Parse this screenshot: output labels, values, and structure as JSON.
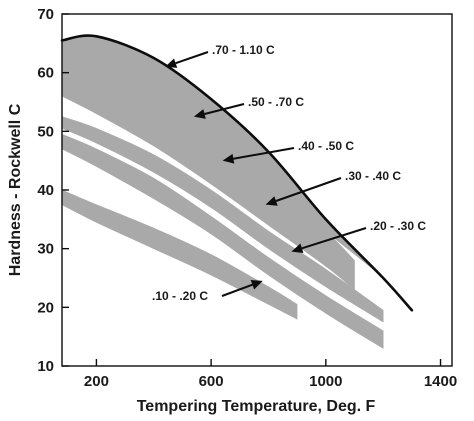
{
  "chart_data": {
    "type": "area",
    "title": "",
    "xlabel": "Tempering Temperature, Deg. F",
    "ylabel": "Hardness - Rockwell C",
    "xlim": [
      80,
      1440
    ],
    "ylim": [
      10,
      70
    ],
    "xticks": [
      200,
      600,
      1000,
      1400
    ],
    "yticks": [
      10,
      20,
      30,
      40,
      50,
      60,
      70
    ],
    "grid": false,
    "legend": "none",
    "colors": {
      "band": "#a9a9a9",
      "line": "#0d0d0d",
      "arrow": "#0d0d0d"
    },
    "envelope_line": {
      "name": ".70 - 1.10 C",
      "x": [
        80,
        200,
        400,
        600,
        800,
        1000,
        1200,
        1300
      ],
      "y": [
        65.5,
        66.2,
        62.5,
        55.5,
        46.5,
        35,
        25,
        19.5
      ]
    },
    "series": [
      {
        "name": ".70 - 1.10 C",
        "x": [
          80,
          200,
          400,
          600,
          800,
          1000,
          1200,
          1300
        ],
        "upper": [
          65.5,
          66.2,
          62.5,
          55.5,
          46.5,
          35,
          25,
          19.5
        ],
        "lower": [
          62.5,
          60,
          54.5,
          48,
          41.5,
          33,
          25,
          19.5
        ]
      },
      {
        "name": ".50 - .70 C",
        "x": [
          80,
          200,
          400,
          600,
          800,
          1000,
          1100
        ],
        "upper": [
          62.5,
          60,
          54.5,
          48,
          41.5,
          33,
          28
        ],
        "lower": [
          59,
          56,
          50.5,
          44.5,
          37.5,
          30,
          26
        ]
      },
      {
        "name": ".40 - .50 C",
        "x": [
          80,
          200,
          400,
          600,
          800,
          1000,
          1100
        ],
        "upper": [
          59,
          56,
          50.5,
          44.5,
          37.5,
          30,
          26
        ],
        "lower": [
          56,
          53,
          47.5,
          41,
          34,
          27,
          23
        ]
      },
      {
        "name": ".30 - .40 C",
        "x": [
          80,
          200,
          400,
          600,
          800,
          1000,
          1200
        ],
        "upper": [
          52.5,
          50.5,
          46,
          40,
          33,
          26.5,
          19.5
        ],
        "lower": [
          50.5,
          48,
          43,
          37,
          30,
          23.5,
          17.5
        ]
      },
      {
        "name": ".20 - .30 C",
        "x": [
          80,
          200,
          400,
          600,
          800,
          1000,
          1200
        ],
        "upper": [
          49.5,
          47,
          42,
          35.5,
          28.5,
          22,
          16
        ],
        "lower": [
          47,
          44,
          38.5,
          32.5,
          25.5,
          19,
          13
        ]
      },
      {
        "name": ".10 - .20 C",
        "x": [
          80,
          200,
          400,
          600,
          800,
          900
        ],
        "upper": [
          40,
          37.5,
          33.5,
          29,
          23.5,
          20.5
        ],
        "lower": [
          37.5,
          34.5,
          30,
          25.5,
          20.5,
          18
        ]
      }
    ],
    "annotations": [
      {
        "text": ".70 - 1.10 C",
        "arrow_to": [
          440,
          61
        ]
      },
      {
        "text": ".50 - .70 C",
        "arrow_to": [
          540,
          52.5
        ]
      },
      {
        "text": ".40 - .50 C",
        "arrow_to": [
          640,
          45
        ]
      },
      {
        "text": ".30 - .40 C",
        "arrow_to": [
          790,
          37.5
        ]
      },
      {
        "text": ".20 - .30 C",
        "arrow_to": [
          880,
          29.5
        ]
      },
      {
        "text": ".10 - .20 C",
        "arrow_to": [
          780,
          24.5
        ]
      }
    ]
  }
}
